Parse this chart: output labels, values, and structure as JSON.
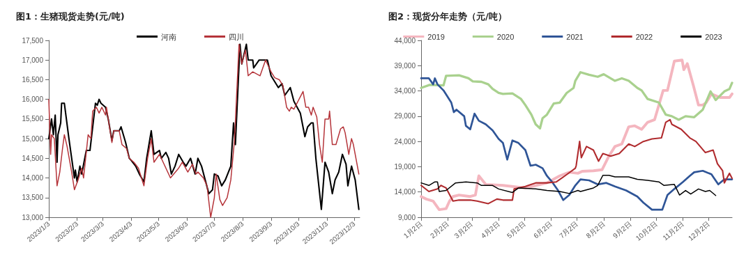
{
  "chart_data": [
    {
      "type": "line",
      "title": "图1：生猪现货走势(元/吨)",
      "legend": "top",
      "grid": false,
      "marker": "none",
      "line_style": "solid",
      "xlim": [
        "2023-01-03",
        "2023-12-09"
      ],
      "xticks": [
        {
          "value": "2023-01-03",
          "label": "2023/1/3"
        },
        {
          "value": "2023-02-03",
          "label": "2023/2/3"
        },
        {
          "value": "2023-03-03",
          "label": "2023/3/3"
        },
        {
          "value": "2023-04-03",
          "label": "2023/4/3"
        },
        {
          "value": "2023-05-03",
          "label": "2023/5/3"
        },
        {
          "value": "2023-06-03",
          "label": "2023/6/3"
        },
        {
          "value": "2023-07-03",
          "label": "2023/7/3"
        },
        {
          "value": "2023-08-03",
          "label": "2023/8/3"
        },
        {
          "value": "2023-09-03",
          "label": "2023/9/3"
        },
        {
          "value": "2023-10-03",
          "label": "2023/10/3"
        },
        {
          "value": "2023-11-03",
          "label": "2023/11/3"
        },
        {
          "value": "2023-12-03",
          "label": "2023/12/3"
        }
      ],
      "ylim": [
        13000,
        17500
      ],
      "yticks": [
        {
          "value": 13000,
          "label": "13,000"
        },
        {
          "value": 13500,
          "label": "13,500"
        },
        {
          "value": 14000,
          "label": "14,000"
        },
        {
          "value": 14500,
          "label": "14,500"
        },
        {
          "value": 15000,
          "label": "15,000"
        },
        {
          "value": 15500,
          "label": "15,500"
        },
        {
          "value": 16000,
          "label": "16,000"
        },
        {
          "value": 16500,
          "label": "16,500"
        },
        {
          "value": 17000,
          "label": "17,000"
        },
        {
          "value": 17500,
          "label": "17,500"
        }
      ],
      "series": [
        {
          "name": "河南",
          "color": "#000000",
          "x": [
            "2023-01-03",
            "2023-01-06",
            "2023-01-08",
            "2023-01-10",
            "2023-01-12",
            "2023-01-13",
            "2023-01-16",
            "2023-01-17",
            "2023-01-20",
            "2023-01-25",
            "2023-01-31",
            "2023-02-01",
            "2023-02-03",
            "2023-02-06",
            "2023-02-08",
            "2023-02-13",
            "2023-02-17",
            "2023-02-20",
            "2023-02-23",
            "2023-02-25",
            "2023-02-27",
            "2023-03-01",
            "2023-03-06",
            "2023-03-09",
            "2023-03-13",
            "2023-03-15",
            "2023-03-21",
            "2023-03-23",
            "2023-03-28",
            "2023-04-01",
            "2023-04-03",
            "2023-04-08",
            "2023-04-12",
            "2023-04-17",
            "2023-04-20",
            "2023-04-25",
            "2023-04-28",
            "2023-05-04",
            "2023-05-06",
            "2023-05-11",
            "2023-05-14",
            "2023-05-17",
            "2023-05-21",
            "2023-05-25",
            "2023-05-30",
            "2023-06-02",
            "2023-06-07",
            "2023-06-12",
            "2023-06-15",
            "2023-06-19",
            "2023-06-27",
            "2023-07-01",
            "2023-07-03",
            "2023-07-07",
            "2023-07-11",
            "2023-07-15",
            "2023-07-21",
            "2023-07-24",
            "2023-07-26",
            "2023-07-31",
            "2023-08-02",
            "2023-08-07",
            "2023-08-09",
            "2023-08-14",
            "2023-08-15",
            "2023-08-21",
            "2023-08-26",
            "2023-08-30",
            "2023-09-03",
            "2023-09-07",
            "2023-09-11",
            "2023-09-15",
            "2023-09-18",
            "2023-09-24",
            "2023-09-28",
            "2023-10-05",
            "2023-10-10",
            "2023-10-13",
            "2023-10-17",
            "2023-10-19",
            "2023-10-22",
            "2023-10-28",
            "2023-11-01",
            "2023-11-05",
            "2023-11-09",
            "2023-11-12",
            "2023-11-16",
            "2023-11-20",
            "2023-11-24",
            "2023-11-26",
            "2023-11-30",
            "2023-12-04",
            "2023-12-08"
          ],
          "values": [
            15000,
            15500,
            15100,
            15600,
            14400,
            15100,
            15400,
            15900,
            15900,
            15000,
            14000,
            14200,
            13900,
            14300,
            14100,
            14700,
            14700,
            15300,
            15900,
            15850,
            16000,
            15900,
            15800,
            15500,
            14950,
            15200,
            15200,
            15300,
            14900,
            14500,
            14450,
            14300,
            14100,
            13900,
            14500,
            15200,
            14600,
            14700,
            14500,
            14650,
            14500,
            14100,
            14300,
            14600,
            14400,
            14300,
            14500,
            14100,
            14500,
            14300,
            13600,
            13700,
            14100,
            14050,
            13800,
            13950,
            14300,
            15400,
            14850,
            17400,
            16900,
            17400,
            17000,
            17000,
            16800,
            17000,
            17000,
            17000,
            16600,
            16450,
            16300,
            16400,
            16100,
            16300,
            15950,
            15650,
            15050,
            15300,
            15400,
            15400,
            14500,
            13200,
            14400,
            14150,
            13600,
            13950,
            14150,
            14600,
            14350,
            13800,
            14300,
            13950,
            13200
          ]
        },
        {
          "name": "四川",
          "color": "#b5343a",
          "x": [
            "2023-01-03",
            "2023-01-05",
            "2023-01-06",
            "2023-01-09",
            "2023-01-12",
            "2023-01-15",
            "2023-01-18",
            "2023-01-20",
            "2023-01-23",
            "2023-01-28",
            "2023-01-31",
            "2023-02-04",
            "2023-02-08",
            "2023-02-10",
            "2023-02-15",
            "2023-02-18",
            "2023-02-20",
            "2023-02-24",
            "2023-02-27",
            "2023-03-02",
            "2023-03-06",
            "2023-03-07",
            "2023-03-13",
            "2023-03-15",
            "2023-03-21",
            "2023-03-24",
            "2023-03-29",
            "2023-04-01",
            "2023-04-06",
            "2023-04-11",
            "2023-04-17",
            "2023-04-21",
            "2023-04-25",
            "2023-04-28",
            "2023-05-04",
            "2023-05-09",
            "2023-05-16",
            "2023-05-25",
            "2023-05-29",
            "2023-06-04",
            "2023-06-09",
            "2023-06-13",
            "2023-06-15",
            "2023-06-21",
            "2023-06-25",
            "2023-06-29",
            "2023-07-03",
            "2023-07-05",
            "2023-07-09",
            "2023-07-12",
            "2023-07-17",
            "2023-07-21",
            "2023-07-25",
            "2023-07-30",
            "2023-08-02",
            "2023-08-06",
            "2023-08-09",
            "2023-08-14",
            "2023-08-22",
            "2023-08-28",
            "2023-09-03",
            "2023-09-07",
            "2023-09-12",
            "2023-09-16",
            "2023-09-20",
            "2023-09-23",
            "2023-09-25",
            "2023-09-28",
            "2023-10-08",
            "2023-10-11",
            "2023-10-14",
            "2023-10-17",
            "2023-10-19",
            "2023-10-23",
            "2023-10-26",
            "2023-10-29",
            "2023-11-01",
            "2023-11-05",
            "2023-11-06",
            "2023-11-09",
            "2023-11-13",
            "2023-11-18",
            "2023-11-21",
            "2023-11-23",
            "2023-11-27",
            "2023-11-30",
            "2023-12-02",
            "2023-12-08"
          ],
          "values": [
            16000,
            14600,
            15100,
            15000,
            13800,
            14150,
            14750,
            15100,
            14800,
            14150,
            13700,
            13950,
            14250,
            14000,
            15100,
            15000,
            15700,
            15800,
            15650,
            15800,
            15600,
            15800,
            14900,
            15200,
            15200,
            14850,
            14750,
            14500,
            14400,
            14250,
            13800,
            14500,
            15000,
            14400,
            14600,
            14350,
            14000,
            14250,
            14400,
            14150,
            14350,
            14100,
            14150,
            14000,
            13800,
            13000,
            13500,
            14100,
            13450,
            13300,
            13500,
            13950,
            14950,
            17400,
            16900,
            17250,
            16600,
            16700,
            16600,
            17000,
            16700,
            16550,
            16500,
            16350,
            15800,
            15700,
            15800,
            15750,
            16200,
            15800,
            15800,
            15600,
            15800,
            15550,
            14850,
            14400,
            15500,
            15500,
            15700,
            14850,
            14850,
            15250,
            15300,
            15150,
            14600,
            15000,
            14850,
            14100
          ]
        }
      ]
    },
    {
      "type": "line",
      "title": "图2：现货分年走势（元/吨）",
      "legend": "top",
      "grid": false,
      "marker": "none",
      "line_style": "solid",
      "xlim": [
        "--01-02",
        "--12-29"
      ],
      "xticks": [
        {
          "value": "--01-02",
          "label": "1月2日"
        },
        {
          "value": "--02-02",
          "label": "2月2日"
        },
        {
          "value": "--03-02",
          "label": "3月2日"
        },
        {
          "value": "--04-02",
          "label": "4月2日"
        },
        {
          "value": "--05-02",
          "label": "5月2日"
        },
        {
          "value": "--06-02",
          "label": "6月2日"
        },
        {
          "value": "--07-02",
          "label": "7月2日"
        },
        {
          "value": "--08-02",
          "label": "8月2日"
        },
        {
          "value": "--09-02",
          "label": "9月2日"
        },
        {
          "value": "--10-02",
          "label": "10月2日"
        },
        {
          "value": "--11-02",
          "label": "11月2日"
        },
        {
          "value": "--12-02",
          "label": "12月2日"
        }
      ],
      "ylim": [
        9000,
        44000
      ],
      "yticks": [
        {
          "value": 9000,
          "label": "9,000"
        },
        {
          "value": 14000,
          "label": "14,000"
        },
        {
          "value": 19000,
          "label": "19,000"
        },
        {
          "value": 24000,
          "label": "24,000"
        },
        {
          "value": 29000,
          "label": "29,000"
        },
        {
          "value": 34000,
          "label": "34,000"
        },
        {
          "value": 39000,
          "label": "39,000"
        },
        {
          "value": 44000,
          "label": "44,000"
        }
      ],
      "series": [
        {
          "name": "2019",
          "color": "#f4b6bf",
          "x": [
            "--01-02",
            "--01-08",
            "--01-16",
            "--01-23",
            "--01-31",
            "--02-04",
            "--02-08",
            "--02-15",
            "--02-28",
            "--03-06",
            "--03-10",
            "--03-18",
            "--04-07",
            "--05-03",
            "--05-28",
            "--06-12",
            "--06-23",
            "--07-03",
            "--07-08",
            "--07-21",
            "--07-31",
            "--08-08",
            "--08-15",
            "--08-23",
            "--08-31",
            "--09-07",
            "--09-15",
            "--09-22",
            "--09-30",
            "--10-10",
            "--10-15",
            "--10-23",
            "--11-01",
            "--11-03",
            "--11-07",
            "--11-14",
            "--11-20",
            "--11-25",
            "--11-29",
            "--12-05",
            "--12-15",
            "--12-26",
            "--12-29"
          ],
          "values": [
            13100,
            12600,
            12200,
            10500,
            10700,
            12200,
            13100,
            13400,
            13100,
            13400,
            17200,
            15500,
            15300,
            14800,
            15800,
            17200,
            17900,
            17700,
            18100,
            18200,
            18400,
            21100,
            23000,
            23500,
            26900,
            27100,
            26400,
            27800,
            28300,
            34100,
            34100,
            39900,
            40100,
            38200,
            39400,
            35100,
            31200,
            31200,
            31700,
            33400,
            32700,
            32700,
            33400
          ]
        },
        {
          "name": "2020",
          "color": "#a9d18e",
          "x": [
            "--01-02",
            "--01-12",
            "--01-28",
            "--01-31",
            "--02-15",
            "--02-26",
            "--03-03",
            "--03-13",
            "--03-21",
            "--03-26",
            "--04-02",
            "--04-07",
            "--04-18",
            "--04-28",
            "--05-03",
            "--05-10",
            "--05-15",
            "--05-20",
            "--05-23",
            "--05-28",
            "--06-05",
            "--06-12",
            "--06-20",
            "--06-28",
            "--06-30",
            "--07-06",
            "--07-16",
            "--07-26",
            "--08-02",
            "--08-15",
            "--08-23",
            "--08-31",
            "--09-10",
            "--09-15",
            "--09-22",
            "--10-05",
            "--10-13",
            "--10-20",
            "--10-28",
            "--11-05",
            "--11-15",
            "--11-25",
            "--12-04",
            "--12-10",
            "--12-20",
            "--12-26",
            "--12-29"
          ],
          "values": [
            34600,
            35200,
            35100,
            37000,
            37100,
            36500,
            35900,
            35800,
            35300,
            34400,
            33600,
            33400,
            33500,
            32400,
            31200,
            29300,
            27400,
            26600,
            28600,
            29300,
            31500,
            31700,
            33600,
            34600,
            36000,
            37700,
            37200,
            36800,
            37300,
            36000,
            36500,
            36000,
            34600,
            34100,
            32400,
            31700,
            29300,
            29000,
            28300,
            29000,
            28800,
            30300,
            33900,
            32200,
            33900,
            34400,
            35600
          ]
        },
        {
          "name": "2021",
          "color": "#2f5597",
          "x": [
            "--01-02",
            "--01-11",
            "--01-16",
            "--01-18",
            "--01-21",
            "--01-28",
            "--02-06",
            "--02-09",
            "--02-12",
            "--02-21",
            "--02-23",
            "--02-28",
            "--03-05",
            "--03-10",
            "--03-18",
            "--03-26",
            "--04-02",
            "--04-07",
            "--04-12",
            "--04-18",
            "--04-25",
            "--05-03",
            "--05-09",
            "--05-15",
            "--05-23",
            "--05-28",
            "--06-03",
            "--06-10",
            "--06-16",
            "--06-23",
            "--06-30",
            "--07-06",
            "--07-16",
            "--07-26",
            "--08-05",
            "--08-15",
            "--08-28",
            "--09-10",
            "--09-17",
            "--09-27",
            "--10-09",
            "--10-15",
            "--10-23",
            "--11-02",
            "--11-10",
            "--11-15",
            "--11-25",
            "--12-05",
            "--12-13",
            "--12-20",
            "--12-29"
          ],
          "values": [
            36500,
            36500,
            35300,
            36500,
            35300,
            34100,
            31700,
            29800,
            30300,
            29000,
            27100,
            26400,
            29500,
            28100,
            27400,
            26200,
            24500,
            23700,
            20400,
            24200,
            23700,
            22300,
            19200,
            19400,
            18700,
            17200,
            16000,
            14300,
            12400,
            13400,
            15300,
            16500,
            16300,
            15500,
            15800,
            15100,
            14300,
            13100,
            11900,
            10500,
            10500,
            13400,
            14600,
            16000,
            17200,
            17900,
            18200,
            17500,
            15500,
            16500,
            16500
          ]
        },
        {
          "name": "2022",
          "color": "#b02b2e",
          "x": [
            "--01-02",
            "--01-11",
            "--01-21",
            "--01-25",
            "--01-31",
            "--02-08",
            "--02-15",
            "--02-28",
            "--03-08",
            "--03-21",
            "--03-31",
            "--04-07",
            "--04-18",
            "--04-20",
            "--05-03",
            "--05-15",
            "--05-28",
            "--06-08",
            "--06-18",
            "--06-30",
            "--07-01",
            "--07-05",
            "--07-07",
            "--07-13",
            "--07-21",
            "--07-27",
            "--08-01",
            "--08-10",
            "--08-20",
            "--08-31",
            "--09-07",
            "--09-17",
            "--09-27",
            "--10-08",
            "--10-13",
            "--10-18",
            "--10-20",
            "--10-31",
            "--11-10",
            "--11-17",
            "--11-28",
            "--12-07",
            "--12-12",
            "--12-18",
            "--12-20",
            "--12-26",
            "--12-29"
          ],
          "values": [
            15300,
            14100,
            14600,
            15300,
            14800,
            12200,
            12400,
            12400,
            12200,
            11700,
            12600,
            12400,
            12400,
            14600,
            15100,
            15800,
            15800,
            16000,
            17200,
            18700,
            19200,
            24000,
            20800,
            23000,
            22300,
            20100,
            21600,
            21100,
            21600,
            23500,
            23000,
            24000,
            24500,
            24700,
            27800,
            28300,
            27400,
            26400,
            24700,
            24000,
            21800,
            22300,
            19600,
            18200,
            15800,
            17700,
            16700
          ]
        },
        {
          "name": "2023",
          "color": "#000000",
          "x": [
            "--01-02",
            "--01-11",
            "--01-18",
            "--01-21",
            "--01-23",
            "--01-31",
            "--02-11",
            "--02-23",
            "--03-08",
            "--03-13",
            "--03-26",
            "--04-02",
            "--04-18",
            "--04-25",
            "--05-15",
            "--05-28",
            "--06-12",
            "--06-23",
            "--07-03",
            "--07-06",
            "--07-21",
            "--07-26",
            "--08-01",
            "--08-08",
            "--08-15",
            "--08-31",
            "--09-10",
            "--09-22",
            "--10-05",
            "--10-11",
            "--10-23",
            "--10-29",
            "--11-05",
            "--11-11",
            "--11-20",
            "--11-28",
            "--12-03",
            "--12-10"
          ],
          "values": [
            15800,
            15300,
            16000,
            16000,
            14100,
            14300,
            15800,
            16000,
            15800,
            15300,
            15300,
            14600,
            13900,
            14800,
            14600,
            14300,
            14100,
            13700,
            14300,
            14100,
            14800,
            15300,
            17300,
            17300,
            17000,
            17000,
            16500,
            16300,
            16000,
            15300,
            15500,
            13400,
            14300,
            13600,
            14600,
            14100,
            14300,
            13300
          ]
        }
      ]
    }
  ]
}
